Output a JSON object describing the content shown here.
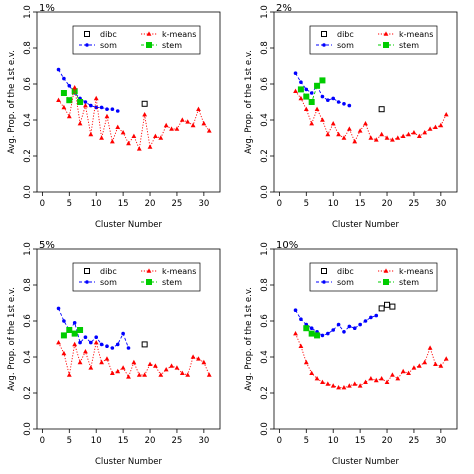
{
  "chart_data": [
    {
      "type": "line",
      "title": "1%",
      "xlabel": "Cluster Number",
      "ylabel": "Avg. Prop. of the 1st e.v.",
      "xlim": [
        -1,
        33
      ],
      "ylim": [
        0,
        1
      ],
      "xticks": [
        "0",
        "5",
        "10",
        "15",
        "20",
        "25",
        "30"
      ],
      "yticks": [
        "0.0",
        "0.2",
        "0.4",
        "0.6",
        "0.8",
        "1.0"
      ],
      "legend": {
        "placement": "top-center",
        "entries": [
          "dibc",
          "k-means",
          "som",
          "stem"
        ]
      },
      "grid": false,
      "series": [
        {
          "name": "dibc",
          "color": "#000000",
          "marker": "square",
          "line": "none",
          "x": [
            19
          ],
          "y": [
            0.49
          ]
        },
        {
          "name": "som",
          "color": "#0000ff",
          "marker": "circle",
          "line": "dashed",
          "x": [
            3,
            4,
            5,
            6,
            7,
            8,
            9,
            10,
            11,
            12,
            13,
            14
          ],
          "y": [
            0.68,
            0.63,
            0.59,
            0.55,
            0.52,
            0.5,
            0.48,
            0.47,
            0.47,
            0.46,
            0.46,
            0.45
          ]
        },
        {
          "name": "stem",
          "color": "#00cc00",
          "marker": "square",
          "line": "dashed",
          "x": [
            4,
            5,
            6,
            7
          ],
          "y": [
            0.55,
            0.51,
            0.56,
            0.5
          ]
        },
        {
          "name": "k-means",
          "color": "#ff0000",
          "marker": "triangle",
          "line": "dotted",
          "x": [
            3,
            4,
            5,
            6,
            7,
            8,
            9,
            10,
            11,
            12,
            13,
            14,
            15,
            16,
            17,
            18,
            19,
            20,
            21,
            22,
            23,
            24,
            25,
            26,
            27,
            28,
            29,
            30,
            31
          ],
          "y": [
            0.51,
            0.47,
            0.42,
            0.58,
            0.38,
            0.48,
            0.32,
            0.52,
            0.3,
            0.42,
            0.28,
            0.36,
            0.33,
            0.27,
            0.31,
            0.24,
            0.43,
            0.25,
            0.31,
            0.3,
            0.37,
            0.35,
            0.35,
            0.4,
            0.39,
            0.37,
            0.46,
            0.38,
            0.34
          ]
        }
      ]
    },
    {
      "type": "line",
      "title": "2%",
      "xlabel": "Cluster Number",
      "ylabel": "Avg. Prop. of the 1st e.v.",
      "xlim": [
        -1,
        33
      ],
      "ylim": [
        0,
        1
      ],
      "xticks": [
        "0",
        "5",
        "10",
        "15",
        "20",
        "25",
        "30"
      ],
      "yticks": [
        "0.0",
        "0.2",
        "0.4",
        "0.6",
        "0.8",
        "1.0"
      ],
      "legend": {
        "placement": "top-center",
        "entries": [
          "dibc",
          "k-means",
          "som",
          "stem"
        ]
      },
      "grid": false,
      "series": [
        {
          "name": "dibc",
          "color": "#000000",
          "marker": "square",
          "line": "none",
          "x": [
            19
          ],
          "y": [
            0.46
          ]
        },
        {
          "name": "som",
          "color": "#0000ff",
          "marker": "circle",
          "line": "dashed",
          "x": [
            3,
            4,
            5,
            6,
            7,
            8,
            9,
            10,
            11,
            12,
            13
          ],
          "y": [
            0.66,
            0.61,
            0.57,
            0.55,
            0.59,
            0.53,
            0.51,
            0.52,
            0.5,
            0.49,
            0.48
          ]
        },
        {
          "name": "stem",
          "color": "#00cc00",
          "marker": "square",
          "line": "dashed",
          "x": [
            4,
            5,
            6,
            7,
            8
          ],
          "y": [
            0.57,
            0.53,
            0.5,
            0.59,
            0.62
          ]
        },
        {
          "name": "k-means",
          "color": "#ff0000",
          "marker": "triangle",
          "line": "dotted",
          "x": [
            3,
            4,
            5,
            6,
            7,
            8,
            9,
            10,
            11,
            12,
            13,
            14,
            15,
            16,
            17,
            18,
            19,
            20,
            21,
            22,
            23,
            24,
            25,
            26,
            27,
            28,
            29,
            30,
            31
          ],
          "y": [
            0.56,
            0.52,
            0.46,
            0.38,
            0.46,
            0.4,
            0.32,
            0.38,
            0.32,
            0.3,
            0.35,
            0.28,
            0.34,
            0.38,
            0.3,
            0.29,
            0.32,
            0.3,
            0.29,
            0.3,
            0.31,
            0.32,
            0.33,
            0.31,
            0.33,
            0.35,
            0.36,
            0.37,
            0.43
          ]
        }
      ]
    },
    {
      "type": "line",
      "title": "5%",
      "xlabel": "Cluster Number",
      "ylabel": "Avg. Prop. of the 1st e.v.",
      "xlim": [
        -1,
        33
      ],
      "ylim": [
        0,
        1
      ],
      "xticks": [
        "0",
        "5",
        "10",
        "15",
        "20",
        "25",
        "30"
      ],
      "yticks": [
        "0.0",
        "0.2",
        "0.4",
        "0.6",
        "0.8",
        "1.0"
      ],
      "legend": {
        "placement": "top-center",
        "entries": [
          "dibc",
          "k-means",
          "som",
          "stem"
        ]
      },
      "grid": false,
      "series": [
        {
          "name": "dibc",
          "color": "#000000",
          "marker": "square",
          "line": "none",
          "x": [
            19
          ],
          "y": [
            0.47
          ]
        },
        {
          "name": "som",
          "color": "#0000ff",
          "marker": "circle",
          "line": "dashed",
          "x": [
            3,
            4,
            5,
            6,
            7,
            8,
            9,
            10,
            11,
            12,
            13,
            14,
            15,
            16
          ],
          "y": [
            0.67,
            0.6,
            0.55,
            0.59,
            0.48,
            0.51,
            0.48,
            0.51,
            0.47,
            0.46,
            0.45,
            0.47,
            0.53,
            0.45
          ]
        },
        {
          "name": "stem",
          "color": "#00cc00",
          "marker": "square",
          "line": "dashed",
          "x": [
            4,
            5,
            6,
            7
          ],
          "y": [
            0.52,
            0.55,
            0.53,
            0.55
          ]
        },
        {
          "name": "k-means",
          "color": "#ff0000",
          "marker": "triangle",
          "line": "dotted",
          "x": [
            3,
            4,
            5,
            6,
            7,
            8,
            9,
            10,
            11,
            12,
            13,
            14,
            15,
            16,
            17,
            18,
            19,
            20,
            21,
            22,
            23,
            24,
            25,
            26,
            27,
            28,
            29,
            30,
            31
          ],
          "y": [
            0.48,
            0.42,
            0.3,
            0.47,
            0.37,
            0.43,
            0.34,
            0.48,
            0.37,
            0.39,
            0.31,
            0.32,
            0.34,
            0.29,
            0.37,
            0.3,
            0.3,
            0.36,
            0.35,
            0.3,
            0.33,
            0.35,
            0.34,
            0.31,
            0.3,
            0.4,
            0.39,
            0.37,
            0.3
          ]
        }
      ]
    },
    {
      "type": "line",
      "title": "10%",
      "xlabel": "Cluster Number",
      "ylabel": "Avg. Prop. of the 1st e.v.",
      "xlim": [
        -1,
        33
      ],
      "ylim": [
        0,
        1
      ],
      "xticks": [
        "0",
        "5",
        "10",
        "15",
        "20",
        "25",
        "30"
      ],
      "yticks": [
        "0.0",
        "0.2",
        "0.4",
        "0.6",
        "0.8",
        "1.0"
      ],
      "legend": {
        "placement": "top-center",
        "entries": [
          "dibc",
          "k-means",
          "som",
          "stem"
        ]
      },
      "grid": false,
      "series": [
        {
          "name": "dibc",
          "color": "#000000",
          "marker": "square",
          "line": "none",
          "x": [
            19,
            20,
            21
          ],
          "y": [
            0.67,
            0.69,
            0.68
          ]
        },
        {
          "name": "som",
          "color": "#0000ff",
          "marker": "circle",
          "line": "dashed",
          "x": [
            3,
            4,
            5,
            6,
            7,
            8,
            9,
            10,
            11,
            12,
            13,
            14,
            15,
            16,
            17,
            18
          ],
          "y": [
            0.66,
            0.61,
            0.58,
            0.56,
            0.54,
            0.52,
            0.53,
            0.55,
            0.58,
            0.54,
            0.57,
            0.56,
            0.58,
            0.6,
            0.62,
            0.63
          ]
        },
        {
          "name": "stem",
          "color": "#00cc00",
          "marker": "square",
          "line": "dashed",
          "x": [
            5,
            6,
            7
          ],
          "y": [
            0.56,
            0.53,
            0.52
          ]
        },
        {
          "name": "k-means",
          "color": "#ff0000",
          "marker": "triangle",
          "line": "dotted",
          "x": [
            3,
            4,
            5,
            6,
            7,
            8,
            9,
            10,
            11,
            12,
            13,
            14,
            15,
            16,
            17,
            18,
            19,
            20,
            21,
            22,
            23,
            24,
            25,
            26,
            27,
            28,
            29,
            30,
            31
          ],
          "y": [
            0.53,
            0.46,
            0.37,
            0.31,
            0.28,
            0.26,
            0.25,
            0.24,
            0.23,
            0.23,
            0.24,
            0.25,
            0.24,
            0.26,
            0.28,
            0.27,
            0.28,
            0.26,
            0.3,
            0.28,
            0.32,
            0.31,
            0.34,
            0.35,
            0.37,
            0.45,
            0.36,
            0.35,
            0.39
          ]
        }
      ]
    }
  ]
}
